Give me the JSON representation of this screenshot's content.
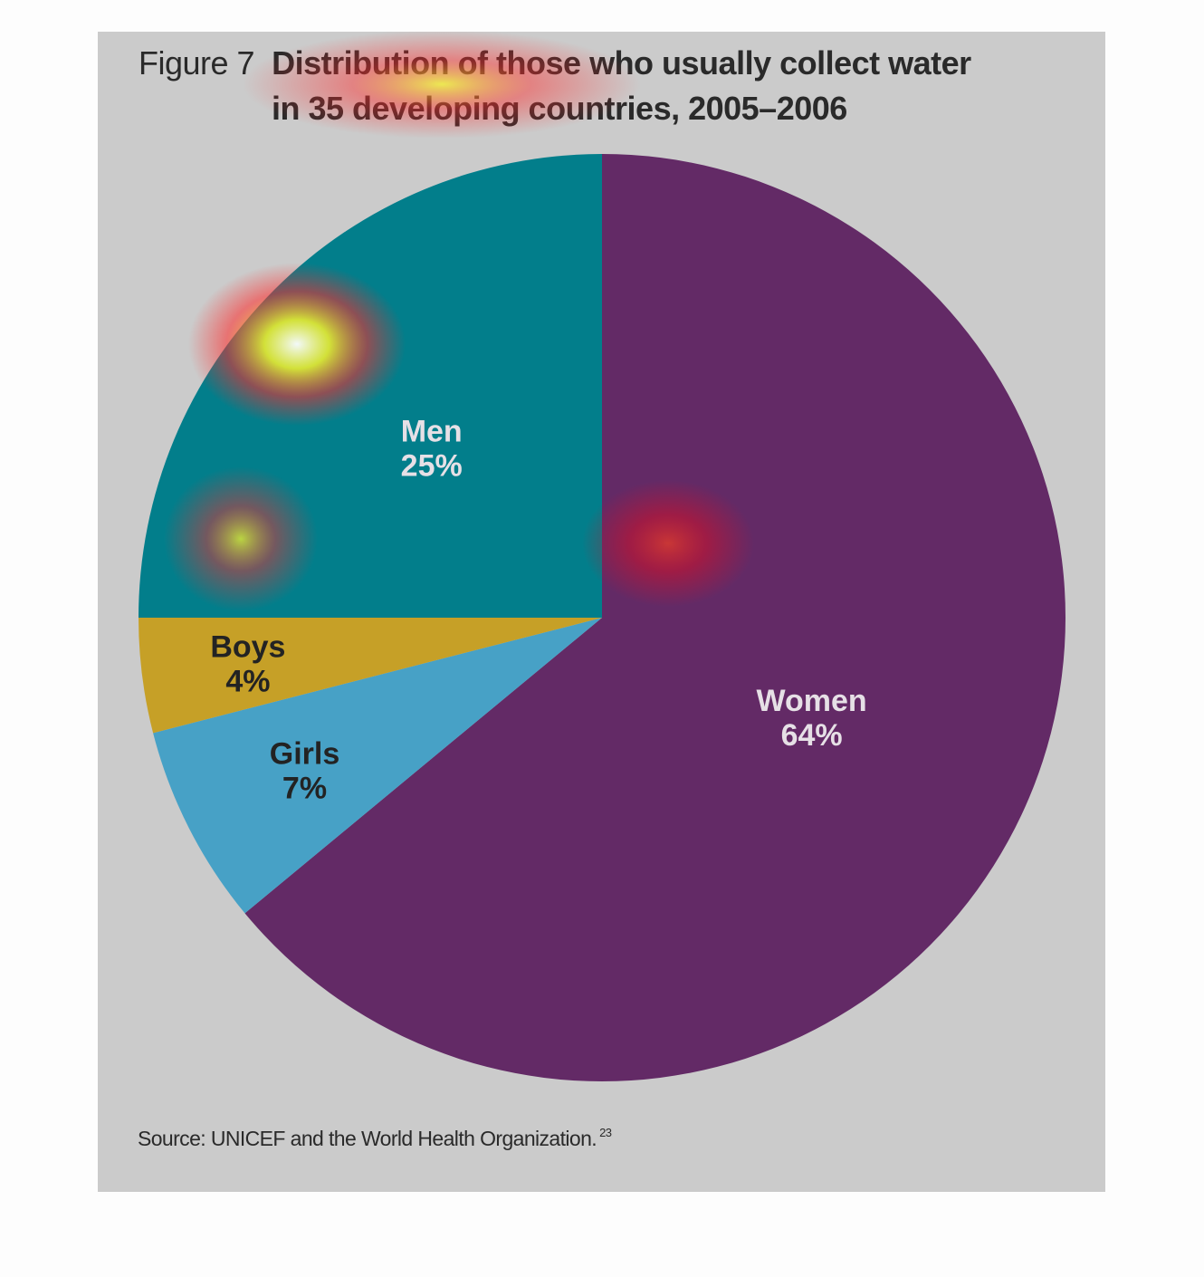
{
  "figure": {
    "label": "Figure 7",
    "title_line1": "Distribution of those who usually collect water",
    "title_line2": "in 35 developing countries, 2005–2006",
    "source": "Source: UNICEF and the World Health Organization.",
    "source_ref": "23"
  },
  "colors": {
    "panel_background": "#cbcbcb",
    "women": "#632a66",
    "men": "#027e8b",
    "boys": "#c6a027",
    "girls": "#47a1c6",
    "heatmap_overlay": [
      "#ffffff",
      "#f7f22a",
      "#ff2a2a"
    ]
  },
  "chart_data": {
    "type": "pie",
    "title": "Distribution of those who usually collect water in 35 developing countries, 2005–2006",
    "start": "12 o'clock",
    "direction": "clockwise",
    "slices": [
      {
        "label": "Women",
        "value": 64,
        "value_label": "64%",
        "color": "#632a66",
        "label_color": "#e6e0e6"
      },
      {
        "label": "Girls",
        "value": 7,
        "value_label": "7%",
        "color": "#47a1c6",
        "label_color": "#232323"
      },
      {
        "label": "Boys",
        "value": 4,
        "value_label": "4%",
        "color": "#c6a027",
        "label_color": "#232323"
      },
      {
        "label": "Men",
        "value": 25,
        "value_label": "25%",
        "color": "#027e8b",
        "label_color": "#e6e0e6"
      }
    ]
  }
}
